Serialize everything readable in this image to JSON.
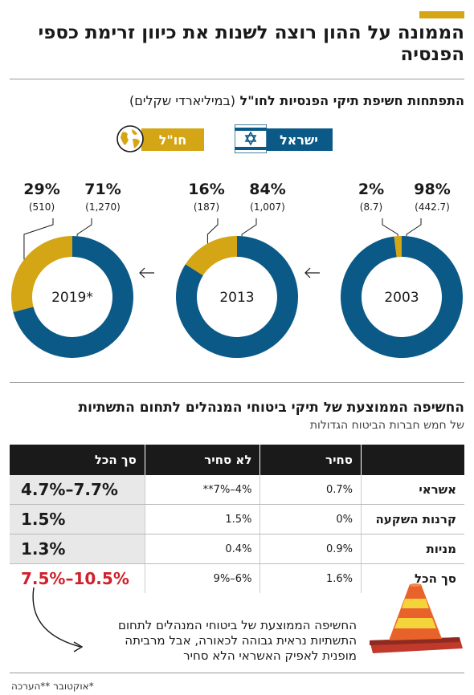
{
  "header": {
    "title": "הממונה על ההון רוצה לשנות את כיוון זרימת כספי הפנסיה"
  },
  "donut_section": {
    "subtitle": "התפתחות חשיפת תיקי הפנסיות לחו\"ל",
    "unit": "(במיליארדי שקלים)",
    "legend_israel": "ישראל",
    "legend_abroad": "חו\"ל"
  },
  "table": {
    "title": "החשיפה הממוצעת של תיקי ביטוחי המנהלים לתחום התשתיות",
    "subtitle": "של חמש חברות הביטוח הגדולות",
    "headers": [
      "",
      "סחיר",
      "לא סחיר",
      "סך הכל"
    ],
    "rows": [
      {
        "label": "אשראי",
        "tradable": "0.7%",
        "non_tradable": "4%–7%**",
        "total": "4.7%–7.7%"
      },
      {
        "label": "קרנות השקעה",
        "tradable": "0%",
        "non_tradable": "1.5%",
        "total": "1.5%"
      },
      {
        "label": "מניות",
        "tradable": "0.9%",
        "non_tradable": "0.4%",
        "total": "1.3%"
      },
      {
        "label": "סך הכל",
        "tradable": "1.6%",
        "non_tradable": "6%–9%",
        "total": "7.5%–10.5%"
      }
    ]
  },
  "note": "החשיפה הממוצעת של ביטוחי המנהלים לתחום התשתיות נראית גבוהה לכאורה, אבל מרביתה מופנית לאפיק האשראי הלא סחיר",
  "footnote": "*אוקטובר **הערכה",
  "colors": {
    "israel": "#0b5987",
    "abroad": "#d4a514",
    "accent": "#d4a514",
    "highlight_red": "#d0202a"
  },
  "chart_data": {
    "type": "pie",
    "title": "התפתחות חשיפת תיקי הפנסיות לחו\"ל",
    "unit": "(במיליארדי שקלים)",
    "series_names": [
      "ישראל",
      "חו\"ל"
    ],
    "charts": [
      {
        "year": "2003",
        "israel_pct": "98%",
        "israel_value": "(442.7)",
        "abroad_pct": "2%",
        "abroad_value": "(8.7)",
        "abroad_share": 0.02
      },
      {
        "year": "2013",
        "israel_pct": "84%",
        "israel_value": "(1,007)",
        "abroad_pct": "16%",
        "abroad_value": "(187)",
        "abroad_share": 0.16
      },
      {
        "year": "2019*",
        "israel_pct": "71%",
        "israel_value": "(1,270)",
        "abroad_pct": "29%",
        "abroad_value": "(510)",
        "abroad_share": 0.29
      }
    ]
  }
}
